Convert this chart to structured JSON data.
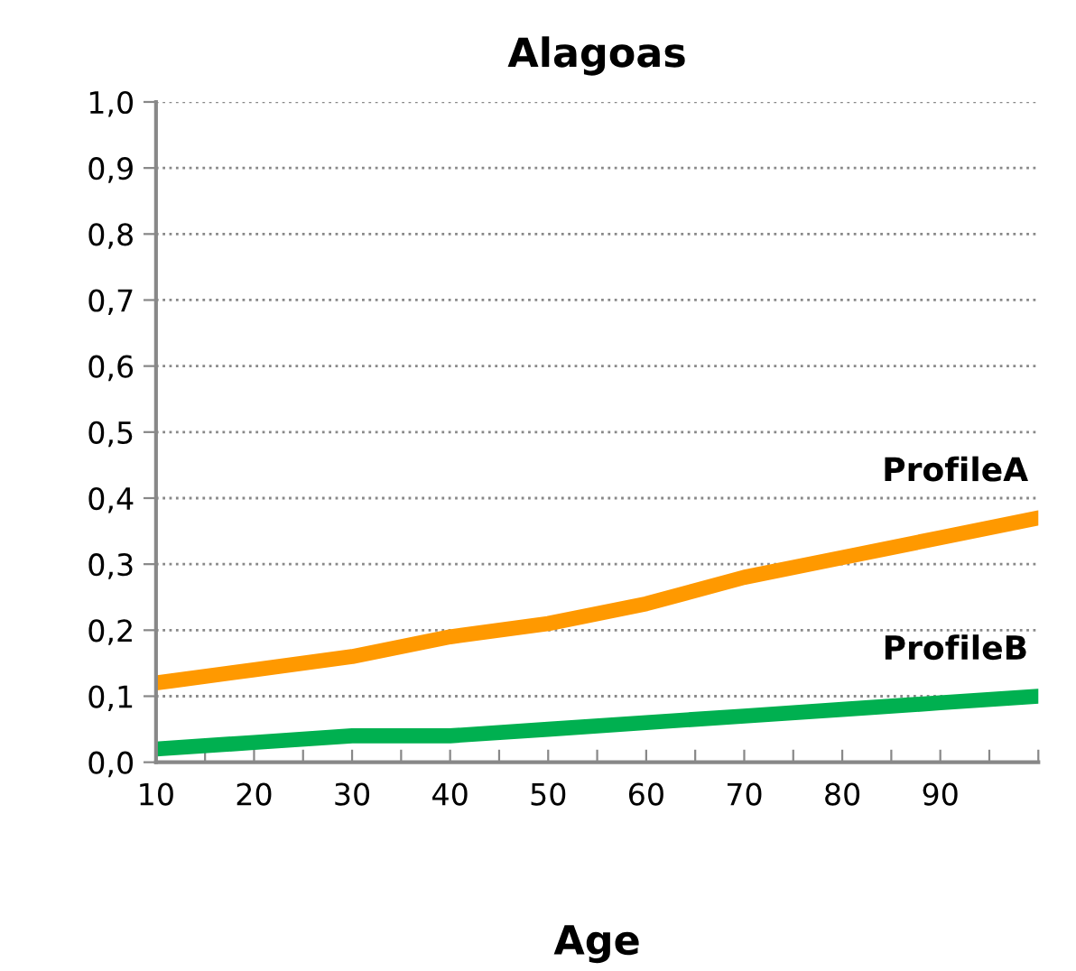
{
  "chart_data": {
    "type": "line",
    "title": "Alagoas",
    "xlabel": "Age",
    "x": [
      10,
      20,
      30,
      40,
      50,
      60,
      70,
      80,
      90,
      100
    ],
    "series": [
      {
        "name": "ProfileA",
        "color": "#ff9900",
        "values": [
          0.12,
          0.14,
          0.16,
          0.19,
          0.21,
          0.24,
          0.28,
          0.31,
          0.34,
          0.37
        ]
      },
      {
        "name": "ProfileB",
        "color": "#00b050",
        "values": [
          0.02,
          0.03,
          0.04,
          0.04,
          0.05,
          0.06,
          0.07,
          0.08,
          0.09,
          0.1
        ]
      }
    ],
    "xlim": [
      10,
      100
    ],
    "xticks": [
      10,
      {
        "value": 15,
        "label": null
      },
      20,
      {
        "value": 25,
        "label": null
      },
      30,
      {
        "value": 35,
        "label": null
      },
      40,
      {
        "value": 45,
        "label": null
      },
      50,
      {
        "value": 55,
        "label": null
      },
      60,
      {
        "value": 65,
        "label": null
      },
      70,
      {
        "value": 75,
        "label": null
      },
      80,
      {
        "value": 85,
        "label": null
      },
      90,
      {
        "value": 95,
        "label": null
      },
      {
        "value": 100,
        "label": null
      }
    ],
    "ylim": [
      0,
      1
    ],
    "yticks": [
      {
        "value": 0,
        "label": "0,0"
      },
      {
        "value": 0.1,
        "label": "0,1"
      },
      {
        "value": 0.2,
        "label": "0,2"
      },
      {
        "value": 0.3,
        "label": "0,3"
      },
      {
        "value": 0.4,
        "label": "0,4"
      },
      {
        "value": 0.5,
        "label": "0,5"
      },
      {
        "value": 0.6,
        "label": "0,6"
      },
      {
        "value": 0.7,
        "label": "0,7"
      },
      {
        "value": 0.8,
        "label": "0,8"
      },
      {
        "value": 0.9,
        "label": "0,9"
      },
      {
        "value": 1,
        "label": "1,0"
      }
    ],
    "grid": "y",
    "legend": false,
    "marker": "none",
    "line_style": "solid"
  }
}
